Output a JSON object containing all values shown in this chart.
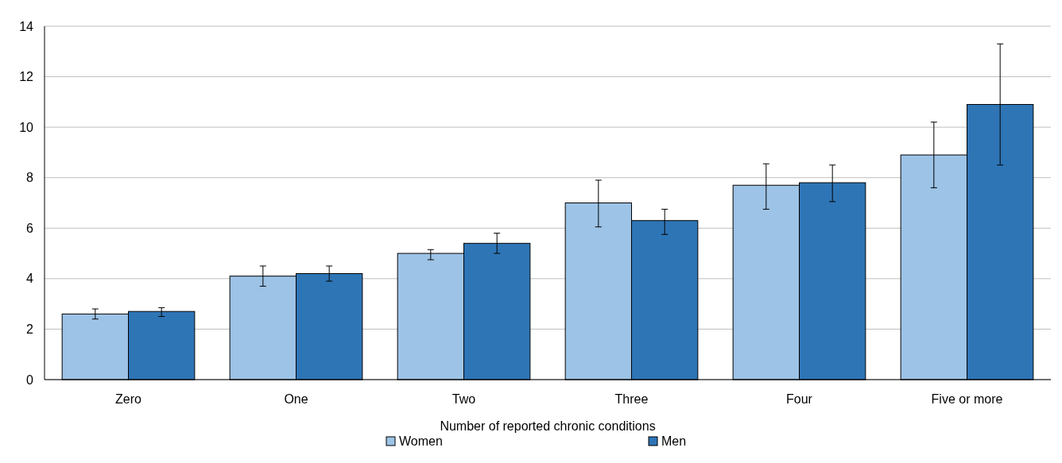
{
  "chart_data": {
    "type": "bar",
    "xlabel": "Number of reported chronic conditions",
    "categories": [
      "Zero",
      "One",
      "Two",
      "Three",
      "Four",
      "Five or more"
    ],
    "series": [
      {
        "name": "Women",
        "color": "#9dc3e6",
        "values": [
          2.6,
          4.1,
          5.0,
          7.0,
          7.7,
          8.9
        ],
        "errors": [
          [
            2.4,
            2.8
          ],
          [
            3.7,
            4.5
          ],
          [
            4.75,
            5.15
          ],
          [
            6.05,
            7.9
          ],
          [
            6.75,
            8.55
          ],
          [
            7.6,
            10.2
          ]
        ]
      },
      {
        "name": "Men",
        "color": "#2e75b6",
        "values": [
          2.7,
          4.2,
          5.4,
          6.3,
          7.8,
          10.9
        ],
        "errors": [
          [
            2.5,
            2.85
          ],
          [
            3.9,
            4.5
          ],
          [
            5.0,
            5.8
          ],
          [
            5.75,
            6.75
          ],
          [
            7.05,
            8.5
          ],
          [
            8.5,
            13.3
          ]
        ]
      }
    ],
    "ylim": [
      0,
      14
    ],
    "yticks": [
      0,
      2,
      4,
      6,
      8,
      10,
      12,
      14
    ],
    "grid": "y",
    "legend": "bottom"
  }
}
